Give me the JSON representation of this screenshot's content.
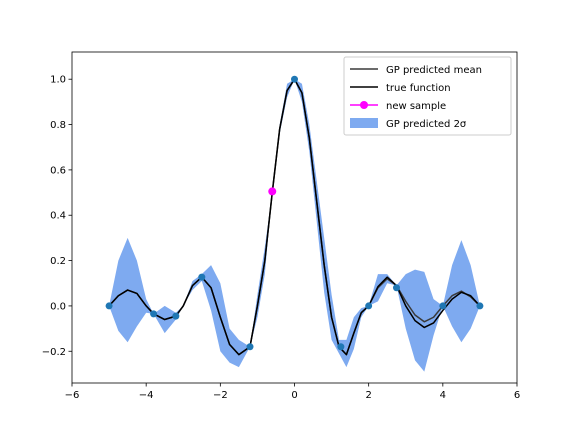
{
  "chart_data": {
    "type": "line",
    "title": "",
    "xlabel": "",
    "ylabel": "",
    "xlim": [
      -6,
      6
    ],
    "ylim": [
      -0.34,
      1.12
    ],
    "xticks": [
      -6,
      -4,
      -2,
      0,
      2,
      4,
      6
    ],
    "xtick_labels": [
      "−6",
      "−4",
      "−2",
      "0",
      "2",
      "4",
      "6"
    ],
    "yticks": [
      -0.2,
      0.0,
      0.2,
      0.4,
      0.6,
      0.8,
      1.0
    ],
    "ytick_labels": [
      "−0.2",
      "0.0",
      "0.2",
      "0.4",
      "0.6",
      "0.8",
      "1.0"
    ],
    "grid": false,
    "legend_position": "top-right",
    "colors": {
      "gp_mean": "#3a3a3a",
      "true_function": "#000000",
      "new_sample": "#ff00ff",
      "band": "#7eaaf0",
      "observed": "#1f77b4"
    },
    "series": [
      {
        "name": "GP predicted mean",
        "x": [
          -5.0,
          -4.75,
          -4.5,
          -4.25,
          -4.0,
          -3.8,
          -3.5,
          -3.2,
          -3.0,
          -2.75,
          -2.5,
          -2.25,
          -2.0,
          -1.75,
          -1.5,
          -1.2,
          -1.0,
          -0.8,
          -0.6,
          -0.4,
          -0.2,
          0.0,
          0.2,
          0.4,
          0.6,
          0.8,
          1.0,
          1.2,
          1.4,
          1.6,
          1.8,
          2.0,
          2.25,
          2.5,
          2.75,
          3.0,
          3.25,
          3.5,
          3.75,
          4.0,
          4.25,
          4.5,
          4.75,
          5.0
        ],
        "values": [
          0.0,
          0.045,
          0.07,
          0.055,
          0.0,
          -0.035,
          -0.06,
          -0.045,
          0.0,
          0.09,
          0.127,
          0.08,
          -0.05,
          -0.17,
          -0.215,
          -0.18,
          0.0,
          0.2,
          0.5,
          0.78,
          0.95,
          1.0,
          0.94,
          0.74,
          0.46,
          0.18,
          -0.05,
          -0.18,
          -0.215,
          -0.12,
          -0.03,
          0.0,
          0.08,
          0.12,
          0.09,
          0.02,
          -0.04,
          -0.07,
          -0.05,
          0.0,
          0.045,
          0.065,
          0.04,
          0.0
        ]
      },
      {
        "name": "true function",
        "x": [
          -5.0,
          -4.75,
          -4.5,
          -4.25,
          -4.0,
          -3.8,
          -3.5,
          -3.2,
          -3.0,
          -2.75,
          -2.5,
          -2.25,
          -2.0,
          -1.75,
          -1.5,
          -1.2,
          -1.0,
          -0.8,
          -0.6,
          -0.4,
          -0.2,
          0.0,
          0.2,
          0.4,
          0.6,
          0.8,
          1.0,
          1.2,
          1.4,
          1.6,
          1.8,
          2.0,
          2.25,
          2.5,
          2.75,
          3.0,
          3.25,
          3.5,
          3.75,
          4.0,
          4.25,
          4.5,
          4.75,
          5.0
        ],
        "values": [
          0.0,
          0.045,
          0.07,
          0.055,
          0.0,
          -0.035,
          -0.06,
          -0.045,
          0.0,
          0.09,
          0.127,
          0.08,
          -0.05,
          -0.17,
          -0.215,
          -0.18,
          0.0,
          0.2,
          0.5,
          0.78,
          0.95,
          1.0,
          0.94,
          0.74,
          0.46,
          0.18,
          -0.05,
          -0.18,
          -0.215,
          -0.12,
          -0.03,
          0.0,
          0.085,
          0.127,
          0.09,
          0.0,
          -0.065,
          -0.095,
          -0.075,
          -0.02,
          0.03,
          0.06,
          0.045,
          0.0
        ]
      }
    ],
    "band": {
      "name": "GP predicted 2σ",
      "x": [
        -5.0,
        -4.75,
        -4.5,
        -4.25,
        -4.0,
        -3.8,
        -3.5,
        -3.2,
        -3.0,
        -2.75,
        -2.5,
        -2.25,
        -2.0,
        -1.75,
        -1.5,
        -1.2,
        -1.0,
        -0.8,
        -0.6,
        -0.4,
        -0.2,
        0.0,
        0.2,
        0.4,
        0.6,
        0.8,
        1.0,
        1.2,
        1.4,
        1.6,
        1.8,
        2.0,
        2.25,
        2.5,
        2.75,
        3.0,
        3.25,
        3.5,
        3.75,
        4.0,
        4.25,
        4.5,
        4.75,
        5.0
      ],
      "upper": [
        0.0,
        0.2,
        0.3,
        0.2,
        0.03,
        -0.035,
        0.0,
        -0.03,
        0.0,
        0.11,
        0.14,
        0.18,
        0.1,
        -0.1,
        -0.15,
        -0.18,
        0.05,
        0.26,
        0.5,
        0.8,
        0.98,
        1.0,
        0.98,
        0.8,
        0.55,
        0.3,
        0.05,
        -0.15,
        -0.15,
        -0.05,
        -0.01,
        0.0,
        0.14,
        0.14,
        0.09,
        0.14,
        0.16,
        0.15,
        0.03,
        0.0,
        0.18,
        0.29,
        0.18,
        0.0
      ],
      "lower": [
        0.0,
        -0.11,
        -0.16,
        -0.09,
        -0.03,
        -0.035,
        -0.12,
        -0.06,
        0.0,
        0.07,
        0.11,
        -0.02,
        -0.2,
        -0.25,
        -0.27,
        -0.18,
        -0.05,
        0.14,
        0.5,
        0.76,
        0.92,
        1.0,
        0.9,
        0.68,
        0.37,
        0.06,
        -0.15,
        -0.21,
        -0.27,
        -0.19,
        -0.05,
        0.0,
        0.02,
        0.1,
        0.09,
        -0.1,
        -0.24,
        -0.29,
        -0.13,
        0.0,
        -0.09,
        -0.16,
        -0.1,
        0.0
      ]
    },
    "observed_points": {
      "x": [
        -5.0,
        -3.8,
        -3.2,
        -2.5,
        -1.2,
        0.0,
        1.25,
        2.0,
        2.75,
        4.0,
        5.0
      ],
      "y": [
        0.0,
        -0.035,
        -0.045,
        0.127,
        -0.18,
        1.0,
        -0.18,
        0.0,
        0.08,
        0.0,
        0.0
      ]
    },
    "new_sample": {
      "name": "new sample",
      "x": -0.6,
      "y": 0.505
    }
  }
}
